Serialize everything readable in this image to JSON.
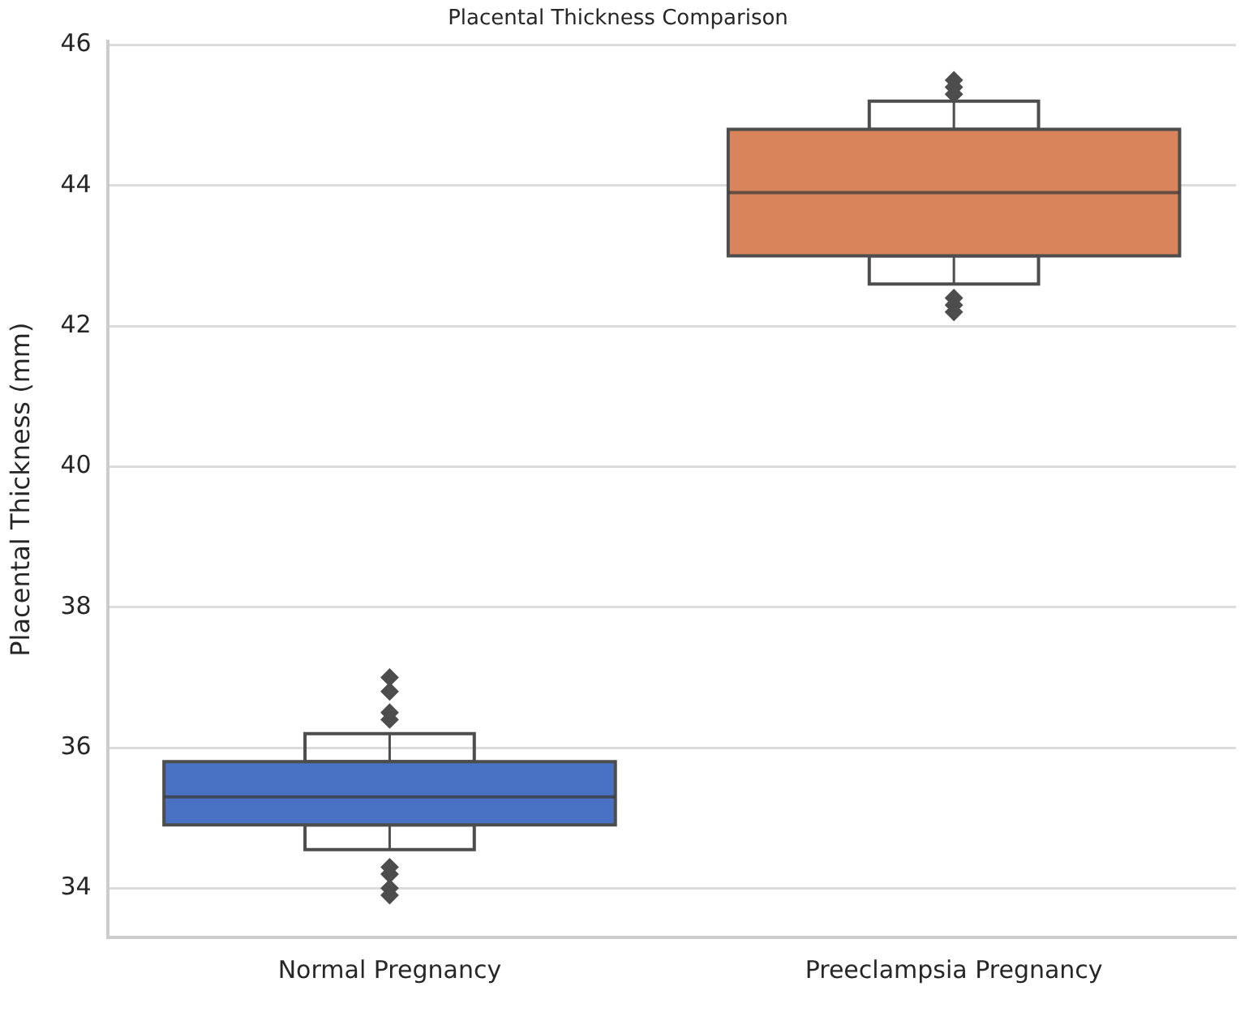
{
  "chart_data": {
    "type": "box",
    "title": "Placental Thickness Comparison",
    "ylabel": "Placental Thickness (mm)",
    "categories": [
      "Normal Pregnancy",
      "Preeclampsia Pregnancy"
    ],
    "colors": [
      "#4a72c4",
      "#d9845a"
    ],
    "boxes": [
      {
        "low": 34.55,
        "q1": 34.9,
        "median": 35.3,
        "q3": 35.8,
        "high": 36.2,
        "outliers": [
          36.4,
          36.5,
          36.8,
          37.0,
          34.3,
          34.2,
          34.0,
          33.9
        ]
      },
      {
        "low": 42.6,
        "q1": 43.0,
        "median": 43.9,
        "q3": 44.8,
        "high": 45.2,
        "outliers": [
          45.3,
          45.4,
          45.5,
          42.4,
          42.3,
          42.2
        ]
      }
    ],
    "ylim": [
      33.3,
      46.05
    ],
    "yticks": [
      34,
      36,
      38,
      40,
      42,
      44,
      46
    ],
    "grid": "y",
    "legend": false
  }
}
